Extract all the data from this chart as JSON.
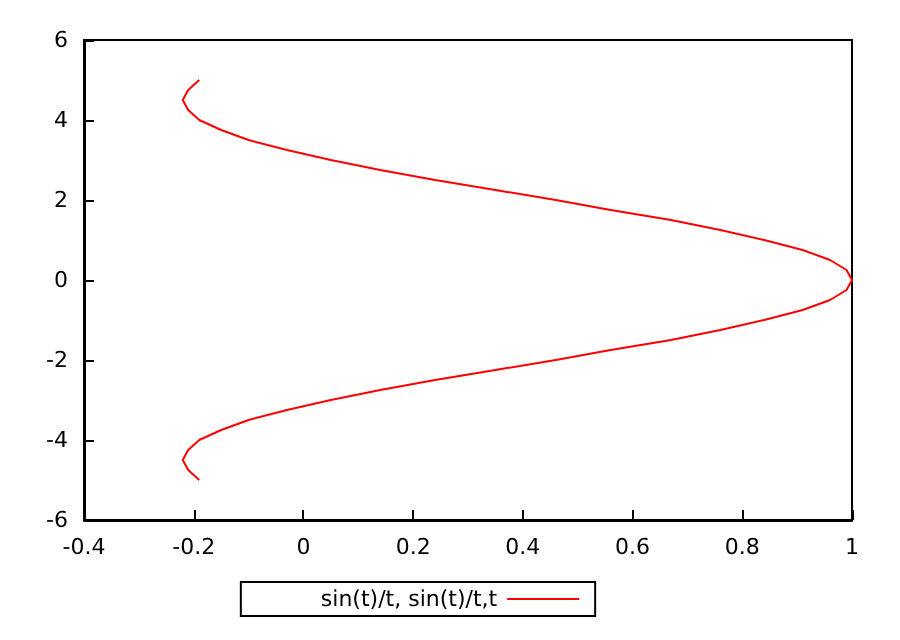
{
  "chart_data": {
    "type": "line",
    "series": [
      {
        "name": "sin(t)/t, sin(t)/t,t",
        "color": "#ff0000",
        "x": [
          -0.19,
          -0.21,
          -0.22,
          -0.21,
          -0.19,
          -0.15,
          -0.1,
          -0.03,
          0.05,
          0.14,
          0.24,
          0.35,
          0.46,
          0.56,
          0.67,
          0.76,
          0.84,
          0.91,
          0.96,
          0.99,
          1,
          0.99,
          0.96,
          0.91,
          0.84,
          0.76,
          0.67,
          0.56,
          0.46,
          0.35,
          0.24,
          0.14,
          0.05,
          -0.03,
          -0.1,
          -0.15,
          -0.19,
          -0.21,
          -0.22,
          -0.21,
          -0.19
        ],
        "values": [
          -5,
          -4.75,
          -4.5,
          -4.25,
          -4,
          -3.75,
          -3.5,
          -3.25,
          -3,
          -2.75,
          -2.5,
          -2.25,
          -2,
          -1.75,
          -1.5,
          -1.25,
          -1,
          -0.75,
          -0.5,
          -0.25,
          0,
          0.25,
          0.5,
          0.75,
          1,
          1.25,
          1.5,
          1.75,
          2,
          2.25,
          2.5,
          2.75,
          3,
          3.25,
          3.5,
          3.75,
          4,
          4.25,
          4.5,
          4.75,
          5
        ]
      }
    ],
    "xlim": [
      -0.4,
      1
    ],
    "xticks": [
      -0.4,
      -0.2,
      0,
      0.2,
      0.4,
      0.6,
      0.8,
      1
    ],
    "ylim": [
      -6,
      6
    ],
    "yticks": [
      -6,
      -4,
      -2,
      0,
      2,
      4,
      6
    ],
    "grid": false,
    "legend": "bottom",
    "marker": "none",
    "line_style": "solid"
  }
}
